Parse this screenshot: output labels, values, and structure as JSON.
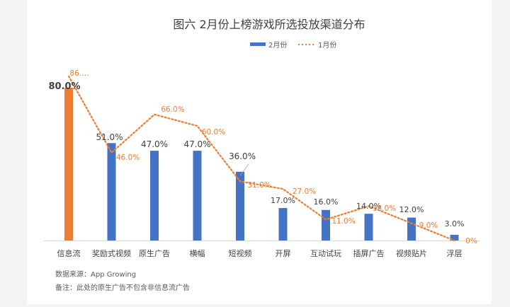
{
  "chart_data": {
    "type": "bar",
    "title": "图六 2月份上榜游戏所选投放渠道分布",
    "categories": [
      "信息流",
      "奖励式视频",
      "原生广告",
      "横幅",
      "短视频",
      "开屏",
      "互动试玩",
      "插屏广告",
      "视频贴片",
      "浮层"
    ],
    "series": [
      {
        "name": "2月份",
        "type": "bar",
        "values": [
          80.0,
          51.0,
          47.0,
          47.0,
          36.0,
          17.0,
          16.0,
          14.0,
          12.0,
          3.0
        ],
        "labels": [
          "80.0%",
          "51.0%",
          "47.0%",
          "47.0%",
          "36.0%",
          "17.0%",
          "16.0%",
          "14.0%",
          "12.0%",
          "3.0%"
        ]
      },
      {
        "name": "1月份",
        "type": "line",
        "values": [
          86.0,
          46.0,
          66.0,
          60.0,
          31.0,
          27.0,
          11.0,
          18.0,
          9.0,
          0.0
        ],
        "labels": [
          "86.…",
          "46.0%",
          "66.0%",
          "60.0%",
          "31.0%",
          "27.0%",
          "11.0%",
          "18.0%",
          "9.0%",
          "0%"
        ]
      }
    ],
    "ylim": [
      0,
      100
    ],
    "xlabel": "",
    "ylabel": "",
    "grid": false,
    "legend_position": "top-right"
  },
  "colors": {
    "bar": "#4472c4",
    "highlight_bar": "#ed7d31",
    "line": "#ed7d31",
    "bar_label": "#404040",
    "line_label": "#ed7d31",
    "axis": "#d9d9d9",
    "text": "#404040"
  },
  "footnotes": {
    "source": "数据来源：App Growing",
    "remark": "备注：此处的原生广告不包含非信息流广告"
  }
}
